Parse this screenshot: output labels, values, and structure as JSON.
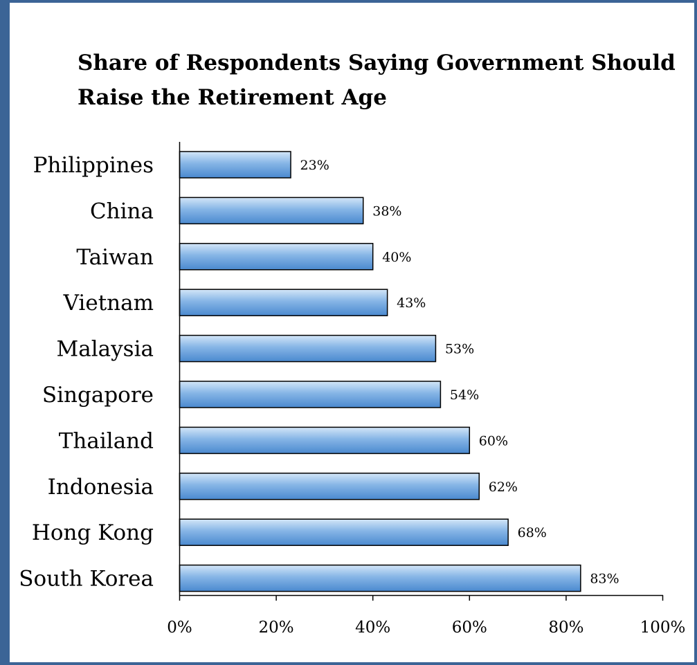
{
  "chart_data": {
    "type": "bar",
    "orientation": "horizontal",
    "title": "Share of Respondents Saying Government Should Raise the Retirement Age",
    "xlabel": "",
    "ylabel": "",
    "categories": [
      "Philippines",
      "China",
      "Taiwan",
      "Vietnam",
      "Malaysia",
      "Singapore",
      "Thailand",
      "Indonesia",
      "Hong Kong",
      "South Korea"
    ],
    "values": [
      23,
      38,
      40,
      43,
      53,
      54,
      60,
      62,
      68,
      83
    ],
    "value_labels": [
      "23%",
      "38%",
      "40%",
      "43%",
      "53%",
      "54%",
      "60%",
      "62%",
      "68%",
      "83%"
    ],
    "xlim": [
      0,
      100
    ],
    "x_ticks": [
      0,
      20,
      40,
      60,
      80,
      100
    ],
    "x_tick_labels": [
      "0%",
      "20%",
      "40%",
      "60%",
      "80%",
      "100%"
    ],
    "grid": false,
    "legend": "none",
    "bar_color": "#5b9bd5",
    "bar_gradient": [
      "#d4e6f8",
      "#86b5e6",
      "#4a89cf"
    ],
    "bar_outline": "#000000",
    "frame_color": "#3b6496"
  }
}
